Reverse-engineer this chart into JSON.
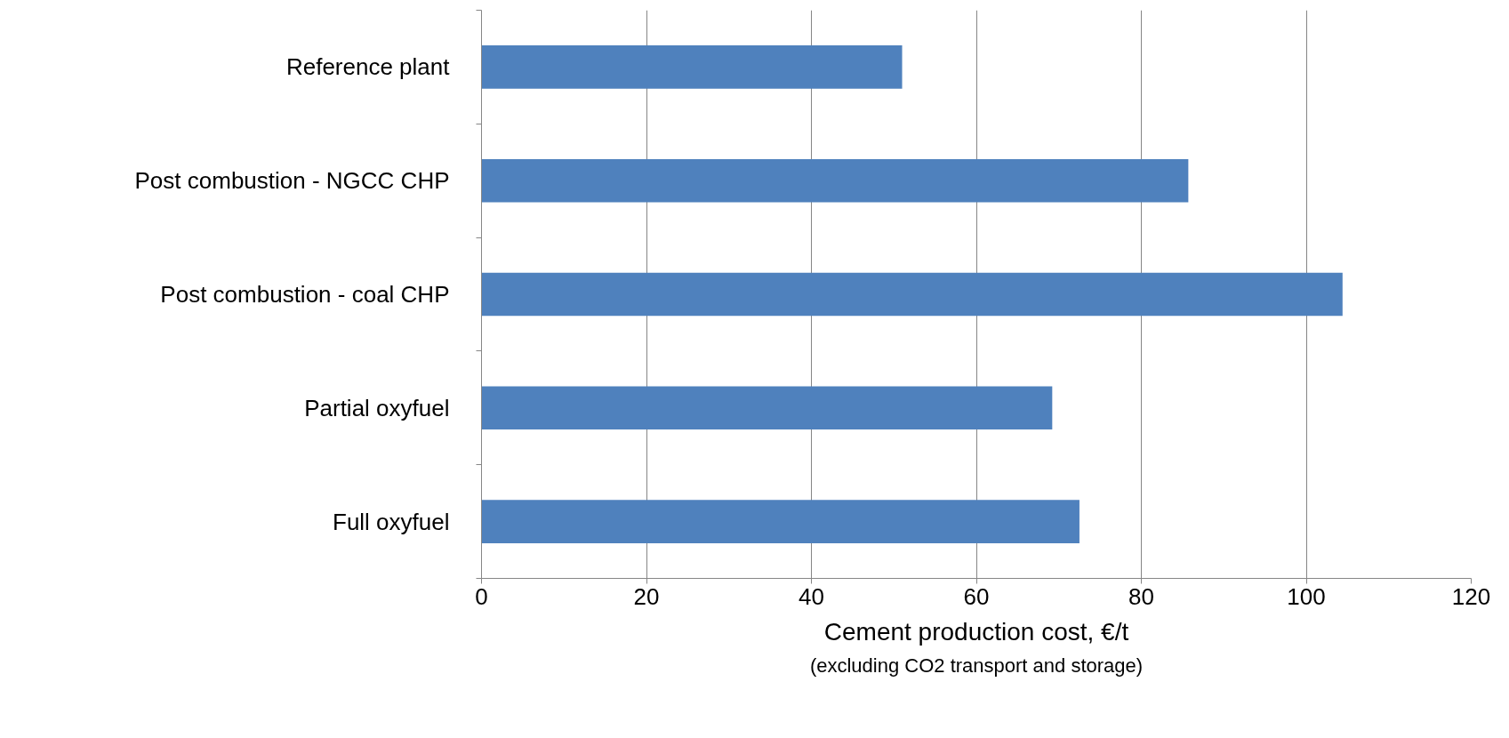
{
  "chart_data": {
    "type": "bar",
    "orientation": "horizontal",
    "categories": [
      "Reference plant",
      "Post combustion - NGCC CHP",
      "Post combustion - coal CHP",
      "Partial oxyfuel",
      "Full oxyfuel"
    ],
    "values": [
      51.0,
      85.7,
      104.4,
      69.2,
      72.5
    ],
    "color": "#4f81bd",
    "xlim": [
      0,
      120
    ],
    "xticks": [
      0,
      20,
      40,
      60,
      80,
      100,
      120
    ],
    "xlabel": "Cement production cost, €/t",
    "annotations": [
      "(excluding CO2 transport and storage)"
    ],
    "grid": "x"
  }
}
